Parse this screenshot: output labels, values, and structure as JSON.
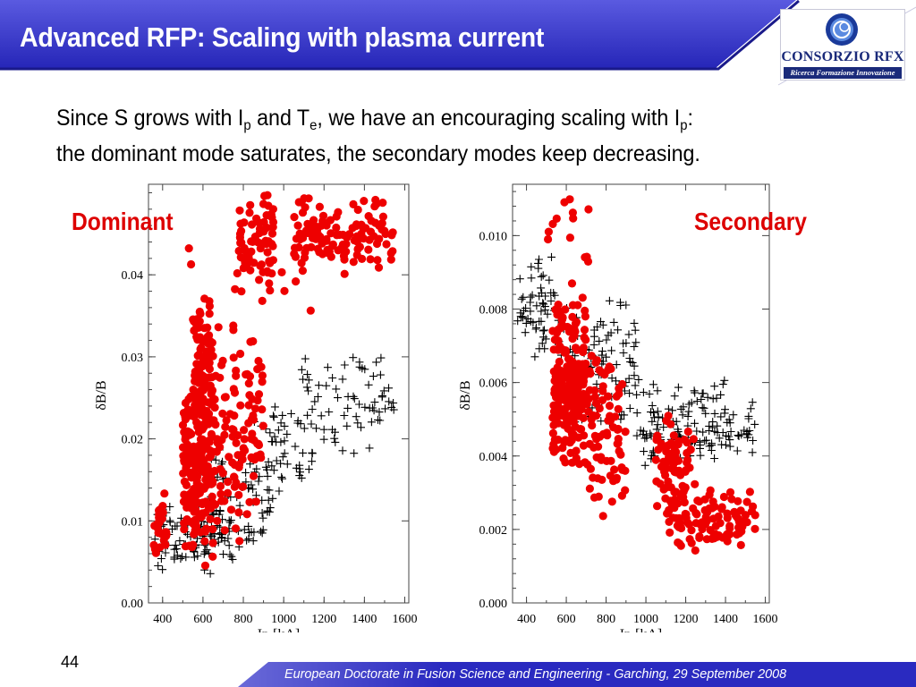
{
  "slide": {
    "title": "Advanced RFP: Scaling with plasma current",
    "subtitle": {
      "p1": "Since S grows with I",
      "p2": "p",
      "p3": " and T",
      "p4": "e",
      "p5": ", we have an encouraging scaling with I",
      "p6": "p",
      "p7": ":",
      "line2": "the dominant mode saturates, the secondary modes keep decreasing."
    },
    "page_number": "44",
    "footer": "European Doctorate in Fusion Science and Engineering  -  Garching, 29 September 2008",
    "logo": {
      "name": "CONSORZIO RFX",
      "tagline": "Ricerca Formazione Innovazione"
    },
    "colors": {
      "title_bar": "#3535c8",
      "accent": "#dd0000",
      "logo_blue": "#1a2a7a"
    }
  },
  "chart_data": [
    {
      "type": "scatter",
      "panel_label": "Dominant",
      "xlabel": "Ip  [kA]",
      "ylabel": "δB/B",
      "xlim": [
        330,
        1620
      ],
      "ylim": [
        0,
        0.0506
      ],
      "xticks": [
        400,
        600,
        800,
        1000,
        1200,
        1400,
        1600
      ],
      "yticks": [
        0.0,
        0.01,
        0.02,
        0.03,
        0.04
      ],
      "ytick_labels": [
        "0.00",
        "0.01",
        "0.02",
        "0.03",
        "0.04"
      ],
      "series": [
        {
          "marker": "circle",
          "color": "#ee0000",
          "clusters": [
            {
              "n": 28,
              "x": [
                345,
                420
              ],
              "y": [
                0.005,
                0.014
              ]
            },
            {
              "n": 200,
              "x": [
                500,
                650
              ],
              "y": [
                0.004,
                0.028
              ]
            },
            {
              "n": 90,
              "x": [
                550,
                650
              ],
              "y": [
                0.02,
                0.038
              ]
            },
            {
              "n": 110,
              "x": [
                650,
                900
              ],
              "y": [
                0.006,
                0.035
              ]
            },
            {
              "n": 70,
              "x": [
                770,
                950
              ],
              "y": [
                0.037,
                0.05
              ]
            },
            {
              "n": 130,
              "x": [
                1050,
                1550
              ],
              "y": [
                0.04,
                0.05
              ]
            },
            {
              "n": 12,
              "x": [
                380,
                1150
              ],
              "y": [
                0.028,
                0.046
              ]
            }
          ]
        },
        {
          "marker": "plus",
          "color": "#000000",
          "clusters": [
            {
              "n": 100,
              "x": [
                350,
                750
              ],
              "y": [
                0.003,
                0.013
              ]
            },
            {
              "n": 80,
              "x": [
                600,
                950
              ],
              "y": [
                0.006,
                0.021
              ]
            },
            {
              "n": 50,
              "x": [
                850,
                1150
              ],
              "y": [
                0.012,
                0.025
              ]
            },
            {
              "n": 70,
              "x": [
                1080,
                1550
              ],
              "y": [
                0.017,
                0.032
              ]
            }
          ]
        }
      ]
    },
    {
      "type": "scatter",
      "panel_label": "Secondary",
      "xlabel": "Ip  [kA]",
      "ylabel": "δB/B",
      "xlim": [
        330,
        1620
      ],
      "ylim": [
        0,
        0.0113
      ],
      "xticks": [
        400,
        600,
        800,
        1000,
        1200,
        1400,
        1600
      ],
      "yticks": [
        0.0,
        0.002,
        0.004,
        0.006,
        0.008,
        0.01
      ],
      "ytick_labels": [
        "0.000",
        "0.002",
        "0.004",
        "0.006",
        "0.008",
        "0.010"
      ],
      "series": [
        {
          "marker": "circle",
          "color": "#ee0000",
          "clusters": [
            {
              "n": 230,
              "x": [
                530,
                700
              ],
              "y": [
                0.0035,
                0.0085
              ]
            },
            {
              "n": 80,
              "x": [
                700,
                900
              ],
              "y": [
                0.0023,
                0.0075
              ]
            },
            {
              "n": 70,
              "x": [
                1050,
                1250
              ],
              "y": [
                0.0025,
                0.0052
              ]
            },
            {
              "n": 110,
              "x": [
                1100,
                1560
              ],
              "y": [
                0.0013,
                0.0033
              ]
            },
            {
              "n": 14,
              "x": [
                470,
                800
              ],
              "y": [
                0.0085,
                0.0112
              ]
            }
          ]
        },
        {
          "marker": "plus",
          "color": "#000000",
          "clusters": [
            {
              "n": 60,
              "x": [
                350,
                550
              ],
              "y": [
                0.0065,
                0.0095
              ]
            },
            {
              "n": 110,
              "x": [
                550,
                950
              ],
              "y": [
                0.0045,
                0.0085
              ]
            },
            {
              "n": 140,
              "x": [
                950,
                1550
              ],
              "y": [
                0.0036,
                0.0061
              ]
            }
          ]
        }
      ]
    }
  ]
}
